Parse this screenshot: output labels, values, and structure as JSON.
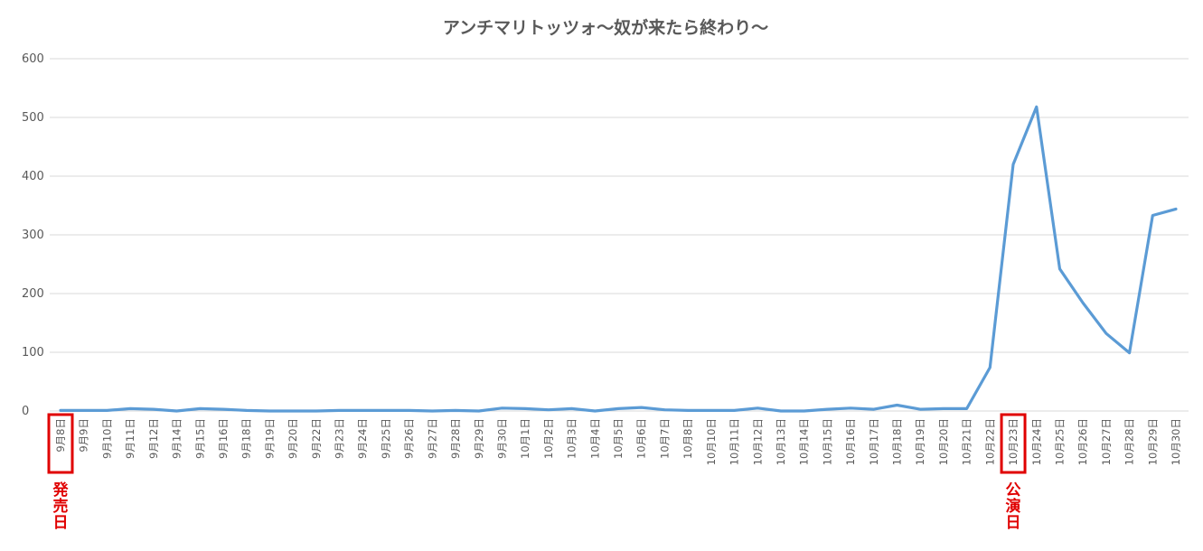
{
  "chart_data": {
    "type": "line",
    "title": "アンチマリトッツォ〜奴が来たら終わり〜",
    "xlabel": "",
    "ylabel": "",
    "ylim": [
      0,
      600
    ],
    "yticks": [
      "0",
      "100",
      "200",
      "300",
      "400",
      "500",
      "600"
    ],
    "grid": true,
    "categories": [
      "9月8日",
      "9月9日",
      "9月10日",
      "9月11日",
      "9月12日",
      "9月14日",
      "9月15日",
      "9月16日",
      "9月18日",
      "9月19日",
      "9月20日",
      "9月22日",
      "9月23日",
      "9月24日",
      "9月25日",
      "9月26日",
      "9月27日",
      "9月28日",
      "9月29日",
      "9月30日",
      "10月1日",
      "10月2日",
      "10月3日",
      "10月4日",
      "10月5日",
      "10月6日",
      "10月7日",
      "10月8日",
      "10月10日",
      "10月11日",
      "10月12日",
      "10月13日",
      "10月14日",
      "10月15日",
      "10月16日",
      "10月17日",
      "10月18日",
      "10月19日",
      "10月20日",
      "10月21日",
      "10月22日",
      "10月23日",
      "10月24日",
      "10月25日",
      "10月26日",
      "10月27日",
      "10月28日",
      "10月29日",
      "10月30日"
    ],
    "series": [
      {
        "color": "#5b9bd5",
        "values": [
          1,
          1,
          1,
          4,
          3,
          0,
          4,
          3,
          1,
          0,
          0,
          0,
          1,
          1,
          1,
          1,
          0,
          1,
          0,
          5,
          4,
          2,
          4,
          0,
          4,
          6,
          2,
          1,
          1,
          1,
          5,
          0,
          0,
          3,
          5,
          3,
          10,
          3,
          4,
          4,
          74,
          420,
          518,
          242,
          184,
          132,
          99,
          333,
          344
        ]
      }
    ],
    "annotations": [
      {
        "category": "9月8日",
        "label": "発売日",
        "color": "#e00000"
      },
      {
        "category": "10月23日",
        "label": "公演日",
        "color": "#e00000"
      }
    ]
  }
}
